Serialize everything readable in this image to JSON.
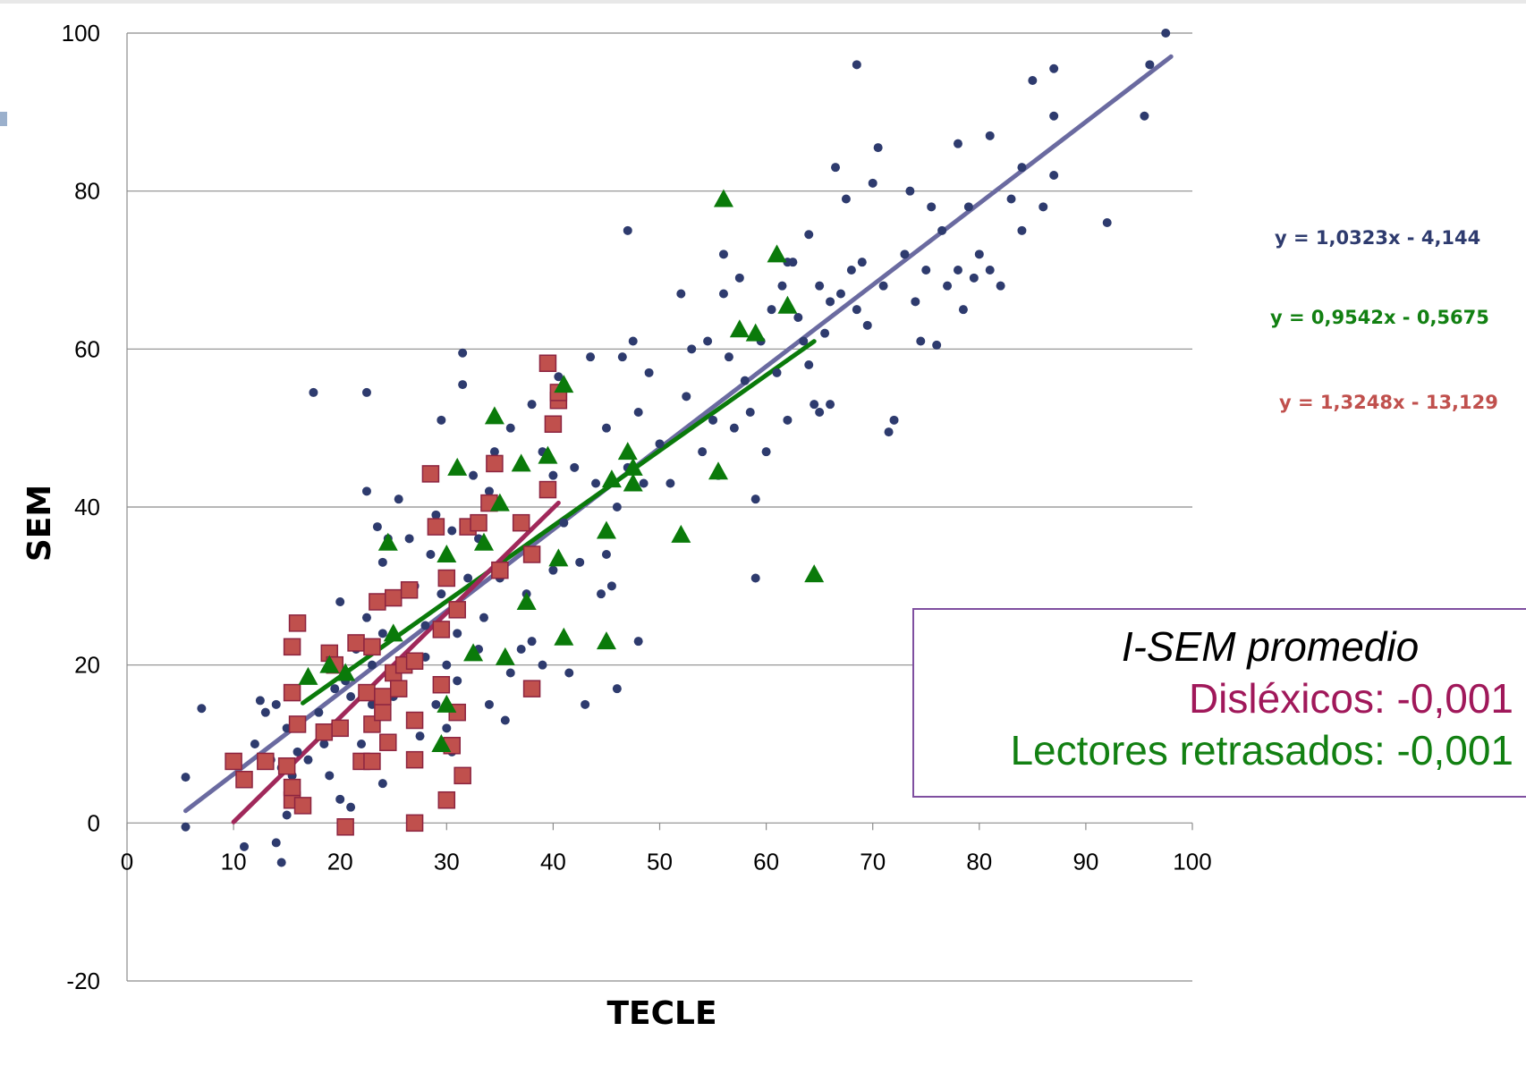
{
  "chart_data": {
    "type": "scatter",
    "xlabel": "TECLE",
    "ylabel": "SEM",
    "xlim": [
      0,
      100
    ],
    "ylim": [
      -20,
      100
    ],
    "x_ticks": [
      "0",
      "10",
      "20",
      "30",
      "40",
      "50",
      "60",
      "70",
      "80",
      "90",
      "100"
    ],
    "y_ticks": [
      "-20",
      "0",
      "20",
      "40",
      "60",
      "80",
      "100"
    ],
    "grid": "horizontal",
    "series": [
      {
        "marker": "circle",
        "color": "#2e3b6e",
        "points": [
          [
            5.5,
            5.8
          ],
          [
            5.5,
            -0.5
          ],
          [
            7,
            14.5
          ],
          [
            11,
            -3
          ],
          [
            12,
            10
          ],
          [
            12.5,
            15.5
          ],
          [
            13,
            14
          ],
          [
            13.5,
            8
          ],
          [
            14,
            15
          ],
          [
            14,
            -2.5
          ],
          [
            14.5,
            -5
          ],
          [
            14.5,
            7
          ],
          [
            15,
            1
          ],
          [
            15,
            12
          ],
          [
            15.5,
            6
          ],
          [
            16,
            9
          ],
          [
            16,
            13
          ],
          [
            17,
            8
          ],
          [
            17.5,
            54.5
          ],
          [
            18,
            14
          ],
          [
            18.5,
            10
          ],
          [
            19,
            6
          ],
          [
            19.5,
            17
          ],
          [
            20,
            3
          ],
          [
            20,
            28
          ],
          [
            20,
            12
          ],
          [
            20.5,
            18
          ],
          [
            21,
            2
          ],
          [
            21,
            16
          ],
          [
            21.5,
            22
          ],
          [
            22,
            10
          ],
          [
            22.5,
            54.5
          ],
          [
            22.5,
            42
          ],
          [
            22.5,
            26
          ],
          [
            23,
            15
          ],
          [
            23,
            20
          ],
          [
            23.5,
            37.5
          ],
          [
            24,
            33
          ],
          [
            24,
            24
          ],
          [
            24,
            5
          ],
          [
            24.5,
            36
          ],
          [
            25,
            16
          ],
          [
            25.5,
            41
          ],
          [
            26,
            20
          ],
          [
            26.5,
            36
          ],
          [
            27,
            30
          ],
          [
            27.5,
            11
          ],
          [
            28,
            25
          ],
          [
            28,
            21
          ],
          [
            28.5,
            34
          ],
          [
            29,
            15
          ],
          [
            29,
            39
          ],
          [
            29.5,
            51
          ],
          [
            29.5,
            29
          ],
          [
            30,
            20
          ],
          [
            30,
            12
          ],
          [
            30.5,
            37
          ],
          [
            30.5,
            9
          ],
          [
            31,
            24
          ],
          [
            31,
            18
          ],
          [
            31.5,
            55.5
          ],
          [
            31.5,
            59.5
          ],
          [
            32,
            31
          ],
          [
            32.5,
            44
          ],
          [
            33,
            36
          ],
          [
            33,
            22
          ],
          [
            33.5,
            26
          ],
          [
            34,
            42
          ],
          [
            34,
            15
          ],
          [
            34.5,
            47
          ],
          [
            35,
            31
          ],
          [
            35.5,
            13
          ],
          [
            36,
            50
          ],
          [
            36,
            19
          ],
          [
            37,
            22
          ],
          [
            37.5,
            29
          ],
          [
            38,
            23
          ],
          [
            38,
            53
          ],
          [
            39,
            47
          ],
          [
            39,
            20
          ],
          [
            40,
            44
          ],
          [
            40,
            32
          ],
          [
            40.5,
            56.5
          ],
          [
            41,
            38
          ],
          [
            41.5,
            19
          ],
          [
            42,
            45
          ],
          [
            42.5,
            33
          ],
          [
            43,
            15
          ],
          [
            43.5,
            59
          ],
          [
            44,
            43
          ],
          [
            44.5,
            29
          ],
          [
            45,
            50
          ],
          [
            45,
            34
          ],
          [
            45.5,
            30
          ],
          [
            46,
            40
          ],
          [
            46,
            17
          ],
          [
            46.5,
            59
          ],
          [
            47,
            75
          ],
          [
            47,
            45
          ],
          [
            47.5,
            61
          ],
          [
            48,
            52
          ],
          [
            48,
            23
          ],
          [
            48.5,
            43
          ],
          [
            49,
            57
          ],
          [
            50,
            48
          ],
          [
            51,
            43
          ],
          [
            52,
            67
          ],
          [
            52.5,
            54
          ],
          [
            53,
            60
          ],
          [
            54,
            47
          ],
          [
            54.5,
            61
          ],
          [
            55,
            51
          ],
          [
            55.5,
            44
          ],
          [
            56,
            72
          ],
          [
            56,
            67
          ],
          [
            56.5,
            59
          ],
          [
            57,
            50
          ],
          [
            57.5,
            69
          ],
          [
            58,
            56
          ],
          [
            58.5,
            52
          ],
          [
            59,
            41
          ],
          [
            59,
            31
          ],
          [
            59.5,
            61
          ],
          [
            60,
            47
          ],
          [
            60.5,
            65
          ],
          [
            61,
            57
          ],
          [
            61.5,
            68
          ],
          [
            62,
            71
          ],
          [
            62,
            51
          ],
          [
            62.5,
            71
          ],
          [
            63,
            64
          ],
          [
            63.5,
            61
          ],
          [
            64,
            74.5
          ],
          [
            64,
            58
          ],
          [
            64.5,
            53
          ],
          [
            65,
            68
          ],
          [
            65,
            52
          ],
          [
            65.5,
            62
          ],
          [
            66,
            66
          ],
          [
            66,
            53
          ],
          [
            66.5,
            83
          ],
          [
            67,
            67
          ],
          [
            67.5,
            79
          ],
          [
            68,
            70
          ],
          [
            68.5,
            96
          ],
          [
            68.5,
            65
          ],
          [
            69,
            71
          ],
          [
            69.5,
            63
          ],
          [
            70,
            81
          ],
          [
            70.5,
            85.5
          ],
          [
            71,
            68
          ],
          [
            71.5,
            49.5
          ],
          [
            72,
            51
          ],
          [
            73,
            72
          ],
          [
            73.5,
            80
          ],
          [
            74,
            66
          ],
          [
            74.5,
            61
          ],
          [
            75,
            70
          ],
          [
            75.5,
            78
          ],
          [
            76,
            60.5
          ],
          [
            76.5,
            75
          ],
          [
            77,
            68
          ],
          [
            78,
            86
          ],
          [
            78,
            70
          ],
          [
            78.5,
            65
          ],
          [
            79,
            78
          ],
          [
            79.5,
            69
          ],
          [
            80,
            72
          ],
          [
            81,
            87
          ],
          [
            81,
            70
          ],
          [
            82,
            68
          ],
          [
            83,
            79
          ],
          [
            84,
            83
          ],
          [
            84,
            75
          ],
          [
            85,
            94
          ],
          [
            86,
            78
          ],
          [
            87,
            95.5
          ],
          [
            87,
            89.5
          ],
          [
            87,
            82
          ],
          [
            92,
            76
          ],
          [
            95.5,
            89.5
          ],
          [
            96,
            96
          ],
          [
            97.5,
            100
          ]
        ]
      },
      {
        "marker": "square",
        "color": "#c0504d",
        "points": [
          [
            10,
            7.8
          ],
          [
            11,
            5.5
          ],
          [
            13,
            7.8
          ],
          [
            15,
            7.2
          ],
          [
            15.5,
            2.9
          ],
          [
            15.5,
            4.5
          ],
          [
            15.5,
            16.5
          ],
          [
            15.5,
            22.3
          ],
          [
            16,
            25.3
          ],
          [
            16,
            12.5
          ],
          [
            16.5,
            2.2
          ],
          [
            18.5,
            11.5
          ],
          [
            19,
            21.5
          ],
          [
            19.5,
            20
          ],
          [
            20,
            12
          ],
          [
            20.5,
            -0.5
          ],
          [
            21.5,
            22.8
          ],
          [
            22,
            7.8
          ],
          [
            22.5,
            16.5
          ],
          [
            23,
            7.8
          ],
          [
            23,
            12.5
          ],
          [
            23,
            22.3
          ],
          [
            23.5,
            28
          ],
          [
            24,
            14
          ],
          [
            24,
            16
          ],
          [
            24.5,
            10.2
          ],
          [
            25,
            19
          ],
          [
            25,
            28.5
          ],
          [
            25.5,
            17
          ],
          [
            26,
            20
          ],
          [
            26.5,
            29.5
          ],
          [
            27,
            20.5
          ],
          [
            27,
            13
          ],
          [
            27,
            8
          ],
          [
            27,
            0
          ],
          [
            28.5,
            44.2
          ],
          [
            29,
            37.5
          ],
          [
            29.5,
            24.5
          ],
          [
            29.5,
            17.5
          ],
          [
            30,
            31
          ],
          [
            30,
            2.9
          ],
          [
            30.5,
            9.8
          ],
          [
            31,
            27
          ],
          [
            31,
            14
          ],
          [
            31.5,
            6
          ],
          [
            32,
            37.5
          ],
          [
            33,
            38
          ],
          [
            34,
            40.5
          ],
          [
            34.5,
            45.5
          ],
          [
            35,
            32
          ],
          [
            37,
            38
          ],
          [
            38,
            34
          ],
          [
            38,
            17
          ],
          [
            39.5,
            58.2
          ],
          [
            39.5,
            42.2
          ],
          [
            40,
            50.5
          ],
          [
            40.5,
            53.5
          ],
          [
            40.5,
            54.5
          ]
        ]
      },
      {
        "marker": "triangle",
        "color": "#0a7a0a",
        "points": [
          [
            17,
            18.5
          ],
          [
            19,
            20
          ],
          [
            20.5,
            19
          ],
          [
            24.5,
            35.5
          ],
          [
            25,
            24
          ],
          [
            29.5,
            10
          ],
          [
            30,
            34
          ],
          [
            30,
            15
          ],
          [
            31,
            45
          ],
          [
            32.5,
            21.5
          ],
          [
            33.5,
            35.5
          ],
          [
            34.5,
            51.5
          ],
          [
            35,
            40.5
          ],
          [
            35.5,
            21
          ],
          [
            37,
            45.5
          ],
          [
            37.5,
            28
          ],
          [
            39.5,
            46.5
          ],
          [
            40.5,
            33.5
          ],
          [
            41,
            23.5
          ],
          [
            41,
            55.5
          ],
          [
            45,
            37
          ],
          [
            45,
            23
          ],
          [
            45.5,
            43.5
          ],
          [
            47,
            47
          ],
          [
            47.5,
            43
          ],
          [
            47.5,
            45
          ],
          [
            52,
            36.5
          ],
          [
            55.5,
            44.5
          ],
          [
            56,
            79
          ],
          [
            57.5,
            62.5
          ],
          [
            59,
            62
          ],
          [
            61,
            72
          ],
          [
            62,
            65.5
          ],
          [
            64.5,
            31.5
          ]
        ]
      }
    ],
    "trendlines": [
      {
        "color": "#6a6aa0",
        "slope": 1.0323,
        "intercept": -4.144,
        "x": [
          5.5,
          98
        ]
      },
      {
        "color": "#0a7a0a",
        "slope": 0.9542,
        "intercept": -0.5675,
        "x": [
          16.5,
          64.5
        ]
      },
      {
        "color": "#a0285a",
        "slope": 1.3248,
        "intercept": -13.129,
        "x": [
          10,
          40.5
        ]
      }
    ],
    "equations": [
      {
        "text": "y = 1,0323x - 4,144",
        "color": "#2e3b6e"
      },
      {
        "text": "y = 0,9542x - 0,5675",
        "color": "#128012"
      },
      {
        "text": "y = 1,3248x - 13,129",
        "color": "#c0504d"
      }
    ]
  },
  "info_box": {
    "title": "I-SEM promedio",
    "line1": "Disléxicos: -0,001",
    "line2": "Lectores retrasados: -0,001"
  }
}
